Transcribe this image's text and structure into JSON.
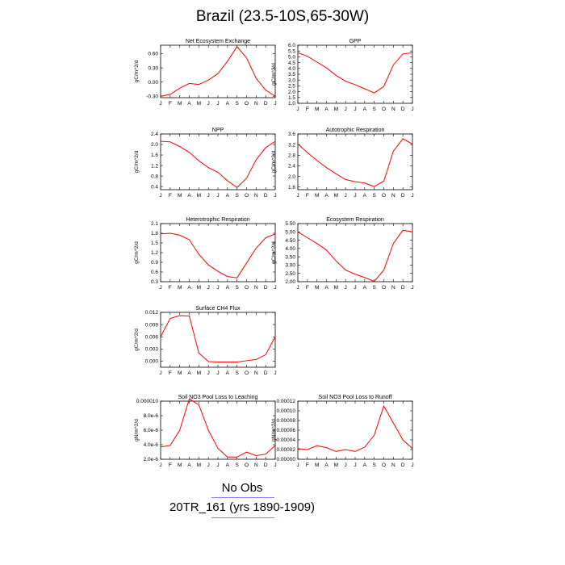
{
  "title": "Brazil (23.5-10S,65-30W)",
  "legend": [
    {
      "label": "No Obs",
      "color": "#8080ff"
    },
    {
      "label": "20TR_161 (yrs 1890-1909)",
      "color": "#ff6060"
    }
  ],
  "colors": {
    "series": "#ff0000",
    "axis": "#000000"
  },
  "chart_data": [
    {
      "type": "line",
      "title": "Net Ecosystem Exchange",
      "ylabel": "gC/m^2/d",
      "x": [
        "J",
        "F",
        "M",
        "A",
        "M",
        "J",
        "J",
        "A",
        "S",
        "O",
        "N",
        "D",
        "J"
      ],
      "yticks": [
        "-0.30",
        "0.00",
        "0.30",
        "0.60"
      ],
      "ylim": [
        -0.33,
        0.78
      ],
      "values": [
        -0.3,
        -0.26,
        -0.13,
        -0.03,
        -0.05,
        0.04,
        0.18,
        0.44,
        0.75,
        0.51,
        0.08,
        -0.17,
        -0.3
      ]
    },
    {
      "type": "line",
      "title": "GPP",
      "ylabel": "gC/m^2/d",
      "x": [
        "J",
        "F",
        "M",
        "A",
        "M",
        "J",
        "J",
        "A",
        "S",
        "O",
        "N",
        "D",
        "J"
      ],
      "yticks": [
        "1.0",
        "1.5",
        "2.0",
        "2.5",
        "3.0",
        "3.5",
        "4.0",
        "4.5",
        "5.0",
        "5.5",
        "6.0"
      ],
      "ylim": [
        1.0,
        6.0
      ],
      "values": [
        5.35,
        5.05,
        4.55,
        4.05,
        3.4,
        2.9,
        2.6,
        2.25,
        1.9,
        2.45,
        4.3,
        5.25,
        5.35
      ]
    },
    {
      "type": "line",
      "title": "NPP",
      "ylabel": "gC/m^2/d",
      "x": [
        "J",
        "F",
        "M",
        "A",
        "M",
        "J",
        "J",
        "A",
        "S",
        "O",
        "N",
        "D",
        "J"
      ],
      "yticks": [
        "0.4",
        "0.8",
        "1.2",
        "1.6",
        "2.0",
        "2.4"
      ],
      "ylim": [
        0.28,
        2.4
      ],
      "values": [
        2.12,
        2.1,
        1.92,
        1.7,
        1.38,
        1.12,
        0.94,
        0.62,
        0.36,
        0.72,
        1.42,
        1.88,
        2.12
      ]
    },
    {
      "type": "line",
      "title": "Autotrophic Respiration",
      "ylabel": "gC/m^2/d",
      "x": [
        "J",
        "F",
        "M",
        "A",
        "M",
        "J",
        "J",
        "A",
        "S",
        "O",
        "N",
        "D",
        "J"
      ],
      "yticks": [
        "1.6",
        "2.0",
        "2.4",
        "2.8",
        "3.2",
        "3.6"
      ],
      "ylim": [
        1.5,
        3.6
      ],
      "values": [
        3.22,
        2.9,
        2.6,
        2.33,
        2.1,
        1.88,
        1.8,
        1.75,
        1.62,
        1.82,
        2.95,
        3.42,
        3.22
      ]
    },
    {
      "type": "line",
      "title": "Heterotrophic Respiration",
      "ylabel": "gC/m^2/d",
      "x": [
        "J",
        "F",
        "M",
        "A",
        "M",
        "J",
        "J",
        "A",
        "S",
        "O",
        "N",
        "D",
        "J"
      ],
      "yticks": [
        "0.3",
        "0.6",
        "0.9",
        "1.2",
        "1.5",
        "1.8",
        "2.1"
      ],
      "ylim": [
        0.3,
        2.1
      ],
      "values": [
        1.78,
        1.8,
        1.74,
        1.6,
        1.15,
        0.82,
        0.62,
        0.46,
        0.42,
        0.88,
        1.34,
        1.66,
        1.78
      ]
    },
    {
      "type": "line",
      "title": "Ecosystem Respiration",
      "ylabel": "gC/m^2/d",
      "x": [
        "J",
        "F",
        "M",
        "A",
        "M",
        "J",
        "J",
        "A",
        "S",
        "O",
        "N",
        "D",
        "J"
      ],
      "yticks": [
        "2.00",
        "2.50",
        "3.00",
        "3.50",
        "4.00",
        "4.50",
        "5.00",
        "5.50"
      ],
      "ylim": [
        2.0,
        5.5
      ],
      "values": [
        5.0,
        4.65,
        4.3,
        3.9,
        3.25,
        2.7,
        2.45,
        2.25,
        2.02,
        2.7,
        4.3,
        5.1,
        5.0
      ]
    },
    {
      "type": "line",
      "title": "Surface CH4 Flux",
      "ylabel": "gC/m^2/d",
      "x": [
        "J",
        "F",
        "M",
        "A",
        "M",
        "J",
        "J",
        "A",
        "S",
        "O",
        "N",
        "D",
        "J"
      ],
      "yticks": [
        "0.000",
        "0.003",
        "0.006",
        "0.009",
        "0.012"
      ],
      "ylim": [
        -0.0015,
        0.012
      ],
      "values": [
        0.006,
        0.0105,
        0.0112,
        0.0111,
        0.002,
        -0.0001,
        -0.0002,
        -0.0002,
        -0.0002,
        0.0001,
        0.0004,
        0.0016,
        0.006
      ]
    },
    {
      "type": "line",
      "title": "Soil NO3 Pool Loss to Leaching",
      "ylabel": "gN/m^2/d",
      "x": [
        "J",
        "F",
        "M",
        "A",
        "M",
        "J",
        "J",
        "A",
        "S",
        "O",
        "N",
        "D",
        "J"
      ],
      "yticks": [
        "2.0e-6",
        "4.0e-6",
        "6.0e-6",
        "8.0e-6",
        "0.000010"
      ],
      "ylim": [
        2e-06,
        1e-05
      ],
      "values": [
        3.7e-06,
        3.9e-06,
        6e-06,
        1.03e-05,
        9.5e-06,
        6e-06,
        3.5e-06,
        2.3e-06,
        2.3e-06,
        3e-06,
        2.5e-06,
        2.7e-06,
        3.9e-06
      ]
    },
    {
      "type": "line",
      "title": "Soil NO3 Pool Loss to Runoff",
      "ylabel": "gN/m^2/d",
      "x": [
        "J",
        "F",
        "M",
        "A",
        "M",
        "J",
        "J",
        "A",
        "S",
        "O",
        "N",
        "D",
        "J"
      ],
      "yticks": [
        "0.00000",
        "0.00002",
        "0.00004",
        "0.00006",
        "0.00008",
        "0.00010",
        "0.00012"
      ],
      "ylim": [
        0.0,
        0.00012
      ],
      "values": [
        2.2e-05,
        2e-05,
        2.8e-05,
        2.4e-05,
        1.6e-05,
        2e-05,
        1.6e-05,
        2.5e-05,
        5e-05,
        0.00011,
        7.5e-05,
        4e-05,
        2.2e-05
      ]
    }
  ]
}
